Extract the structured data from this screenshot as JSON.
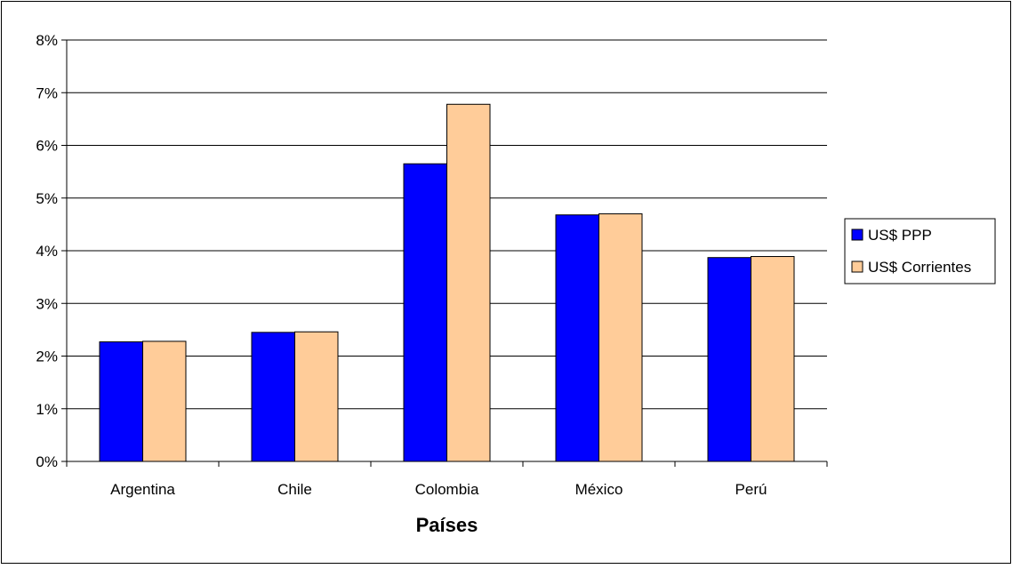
{
  "chart_data": {
    "type": "bar",
    "title": "",
    "xlabel": "Países",
    "ylabel": "",
    "categories": [
      "Argentina",
      "Chile",
      "Colombia",
      "México",
      "Perú"
    ],
    "series": [
      {
        "name": "US$ PPP",
        "color": "#0000ff",
        "values": [
          2.27,
          2.45,
          5.65,
          4.68,
          3.87
        ]
      },
      {
        "name": "US$ Corrientes",
        "color": "#ffcc99",
        "values": [
          2.28,
          2.46,
          6.78,
          4.7,
          3.89
        ]
      }
    ],
    "ylim": [
      0,
      8
    ],
    "y_ticks": [
      "0%",
      "1%",
      "2%",
      "3%",
      "4%",
      "5%",
      "6%",
      "7%",
      "8%"
    ],
    "grid": true,
    "legend_position": "right"
  }
}
